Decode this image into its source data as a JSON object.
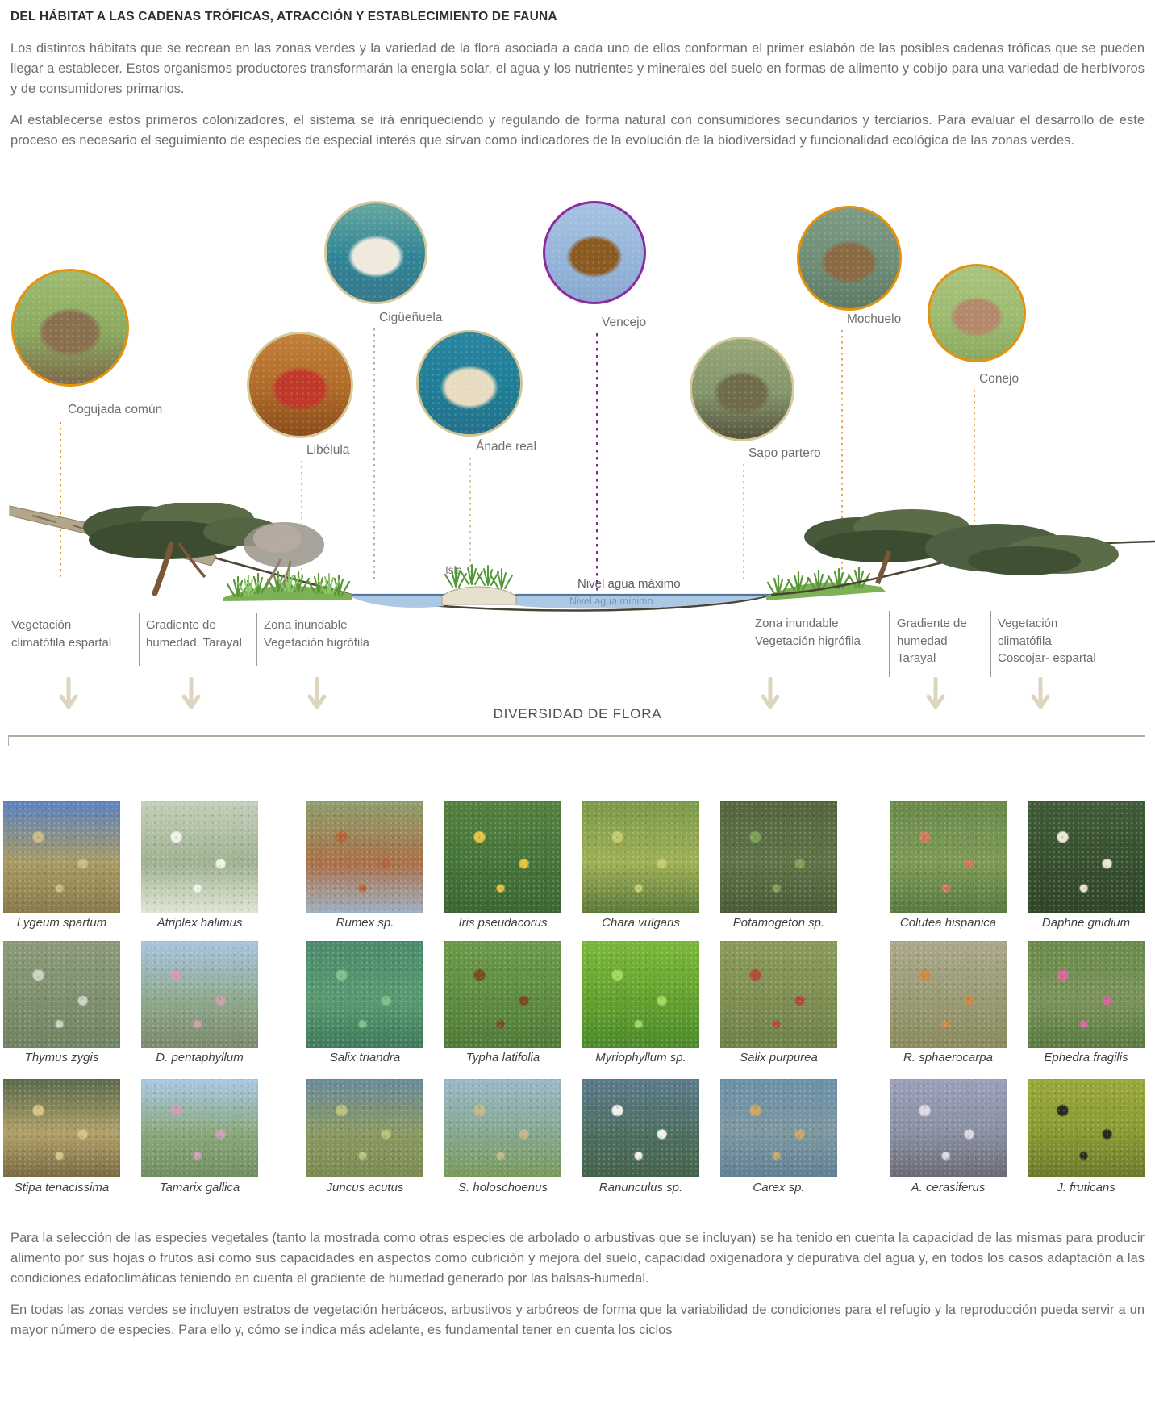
{
  "page": {
    "title": "DEL HÁBITAT A LAS CADENAS TRÓFICAS, ATRACCIÓN Y ESTABLECIMIENTO DE FAUNA",
    "intro": [
      "Los distintos hábitats que se recrean en las zonas verdes y la variedad de la flora asociada a cada uno de ellos conforman el primer eslabón de las posibles cadenas tróficas que se pueden llegar a establecer. Estos organismos productores transformarán la energía solar, el agua y los nutrientes y minerales del suelo en formas de alimento y cobijo para una variedad de herbívoros y de consumidores primarios.",
      "Al establecerse estos primeros colonizadores, el sistema se irá enriqueciendo y regulando de forma natural con consumidores secundarios y terciarios. Para evaluar el desarrollo de este proceso es necesario el seguimiento de especies de especial interés que sirvan como indicadores de la evolución de la biodiversidad y funcionalidad ecológica de las zonas verdes."
    ],
    "outro": [
      "Para la selección de las especies vegetales (tanto la mostrada como otras especies de arbolado o arbustivas que se incluyan) se ha tenido en cuenta la capacidad de las mismas para producir alimento por sus hojas o frutos así como sus capacidades en aspectos como cubrición y mejora del suelo, capacidad oxigenadora y depurativa del agua y, en todos los casos adaptación a las condiciones edafoclimáticas teniendo en cuenta el gradiente de humedad generado por las balsas-humedal.",
      "En todas las zonas verdes se incluyen estratos de vegetación herbáceos, arbustivos y arbóreos de forma que la variabilidad de condiciones para el refugio y la reproducción pueda servir a un mayor número de especies. Para ello y, cómo se indica más adelante, es fundamental tener en cuenta los ciclos"
    ]
  },
  "colors": {
    "accent_orange": "#e5930f",
    "accent_purple": "#8e2a9e",
    "water_blue": "#abc9e5",
    "arrow_beige": "#ded5c0"
  },
  "diagram": {
    "fauna": [
      {
        "id": "cogujada",
        "label": "Cogujada común",
        "border": "#e5930f",
        "line": "#e5930f",
        "photo": [
          "#9dbb72",
          "#8aa95e",
          "#7d6a4a"
        ],
        "blob": "#8a6f4e"
      },
      {
        "id": "ciguenuela",
        "label": "Cigüeñuela",
        "border": "#d8c99c",
        "line": "#b5b0a0",
        "photo": [
          "#66a8a0",
          "#2f8396",
          "#37788a"
        ],
        "blob": "#efeadd"
      },
      {
        "id": "libelula",
        "label": "Libélula",
        "border": "#d8c99c",
        "line": "#d2c296",
        "photo": [
          "#c08038",
          "#b06a28",
          "#8a4a1a"
        ],
        "blob": "#c03828"
      },
      {
        "id": "anade",
        "label": "Ánade real",
        "border": "#d3c493",
        "line": "#d2c296",
        "photo": [
          "#2a85a0",
          "#1f7d96",
          "#25708a"
        ],
        "blob": "#e8dcc0"
      },
      {
        "id": "vencejo",
        "label": "Vencejo",
        "border": "#8e2a9e",
        "line": "#7b2a8e",
        "photo": [
          "#a6c2e2",
          "#96b5da",
          "#88a8d0"
        ],
        "blob": "#8a5a20"
      },
      {
        "id": "sapo",
        "label": "Sapo partero",
        "border": "#d8c99c",
        "line": "#d2c296",
        "photo": [
          "#97a878",
          "#83946a",
          "#55523c"
        ],
        "blob": "#6f6b4a"
      },
      {
        "id": "mochuelo",
        "label": "Mochuelo",
        "border": "#e5930f",
        "line": "#eba64a",
        "photo": [
          "#7e9a84",
          "#6f8d76",
          "#5d7a64"
        ],
        "blob": "#8a6a42"
      },
      {
        "id": "conejo",
        "label": "Conejo",
        "border": "#e5930f",
        "line": "#eba64a",
        "photo": [
          "#aac47e",
          "#9cba70",
          "#8aa85e"
        ],
        "blob": "#b4886a"
      }
    ],
    "island_label": "Isla",
    "water_max_label": "Nivel agua máximo",
    "water_min_label": "Nivel agua mínimo",
    "zones": [
      {
        "id": "left-climatofila",
        "text": "Vegetación\nclimatófila espartal"
      },
      {
        "id": "left-gradiente",
        "text": "Gradiente de\nhumedad. Tarayal"
      },
      {
        "id": "left-inundable",
        "text": "Zona inundable\nVegetación higrófila"
      },
      {
        "id": "right-inundable",
        "text": "Zona inundable\nVegetación higrófila"
      },
      {
        "id": "right-gradiente",
        "text": "Gradiente de\nhumedad\nTarayal"
      },
      {
        "id": "right-climatofila",
        "text": "Vegetación\nclimatófila\nCoscojar- espartal"
      }
    ],
    "flora_heading": "DIVERSIDAD DE FLORA"
  },
  "plants": [
    {
      "name": "Lygeum spartum",
      "colors": [
        "#5b83c0",
        "#a99a64",
        "#8a7a4a"
      ],
      "accent": "#c9bb85"
    },
    {
      "name": "Atriplex halimus",
      "colors": [
        "#c3cfba",
        "#9fb292",
        "#dfe5d4"
      ],
      "accent": "#f0f3e8"
    },
    {
      "name": "Rumex sp.",
      "colors": [
        "#8ca06c",
        "#ab7048",
        "#9fb0c0"
      ],
      "accent": "#b5643a"
    },
    {
      "name": "Iris pseudacorus",
      "colors": [
        "#55813f",
        "#46753a",
        "#3c6632"
      ],
      "accent": "#e8c23a"
    },
    {
      "name": "Chara vulgaris",
      "colors": [
        "#7a9a4a",
        "#a0b055",
        "#5c7a3a"
      ],
      "accent": "#c2cc6a"
    },
    {
      "name": "Potamogeton sp.",
      "colors": [
        "#55663f",
        "#5f7347",
        "#4a5c38"
      ],
      "accent": "#7ca055"
    },
    {
      "name": "Colutea hispanica",
      "colors": [
        "#6a8a4a",
        "#7d9a57",
        "#597a40"
      ],
      "accent": "#cf7a5e"
    },
    {
      "name": "Daphne gnidium",
      "colors": [
        "#415c39",
        "#37502f",
        "#2f4629"
      ],
      "accent": "#e8e6d8"
    },
    {
      "name": "Thymus zygis",
      "colors": [
        "#8a9a7a",
        "#7e906e",
        "#6f8262"
      ],
      "accent": "#cdd3c4"
    },
    {
      "name": "D. pentaphyllum",
      "colors": [
        "#a8c4e0",
        "#8fa98e",
        "#7a8a6a"
      ],
      "accent": "#c9a0b0"
    },
    {
      "name": "Salix triandra",
      "colors": [
        "#4a8a6a",
        "#5a9a72",
        "#3f7a5a"
      ],
      "accent": "#7cc08a"
    },
    {
      "name": "Typha latifolia",
      "colors": [
        "#6a9a4a",
        "#5f8c42",
        "#4f7a38"
      ],
      "accent": "#7a4a20"
    },
    {
      "name": "Myriophyllum sp.",
      "colors": [
        "#7ab83a",
        "#64a22e",
        "#4a8a2a"
      ],
      "accent": "#a2d85e"
    },
    {
      "name": "Salix purpurea",
      "colors": [
        "#8a9a5a",
        "#7f8f52",
        "#6f8048"
      ],
      "accent": "#b04a3a"
    },
    {
      "name": "R. sphaerocarpa",
      "colors": [
        "#aaa88a",
        "#9a9a74",
        "#8a8a5e"
      ],
      "accent": "#cc8a4a"
    },
    {
      "name": "Ephedra fragilis",
      "colors": [
        "#6a8a4a",
        "#7a945a",
        "#5a7a40"
      ],
      "accent": "#d06a9a"
    },
    {
      "name": "Stipa tenacissima",
      "colors": [
        "#5a6a4a",
        "#b0a068",
        "#7a6a40"
      ],
      "accent": "#d4c48a"
    },
    {
      "name": "Tamarix gallica",
      "colors": [
        "#a8c8e4",
        "#8aa87a",
        "#6f8f62"
      ],
      "accent": "#c9a0b8"
    },
    {
      "name": "Juncus acutus",
      "colors": [
        "#6a8a9a",
        "#8a9a62",
        "#7a8a50"
      ],
      "accent": "#b8c27a"
    },
    {
      "name": "S. holoschoenus",
      "colors": [
        "#9ab8c8",
        "#86a890",
        "#7a9a5a"
      ],
      "accent": "#c2b888"
    },
    {
      "name": "Ranunculus sp.",
      "colors": [
        "#5a7a8a",
        "#4f6f62",
        "#44624a"
      ],
      "accent": "#f0f2ea"
    },
    {
      "name": "Carex sp.",
      "colors": [
        "#6a90a8",
        "#7f98a0",
        "#5f8096"
      ],
      "accent": "#c8a868"
    },
    {
      "name": "A. cerasiferus",
      "colors": [
        "#9aa0b8",
        "#8a90a2",
        "#6a6a76"
      ],
      "accent": "#ddd8e4"
    },
    {
      "name": "J. fruticans",
      "colors": [
        "#9aa83a",
        "#8a9a32",
        "#6a7a2a"
      ],
      "accent": "#2a2a1e"
    }
  ]
}
